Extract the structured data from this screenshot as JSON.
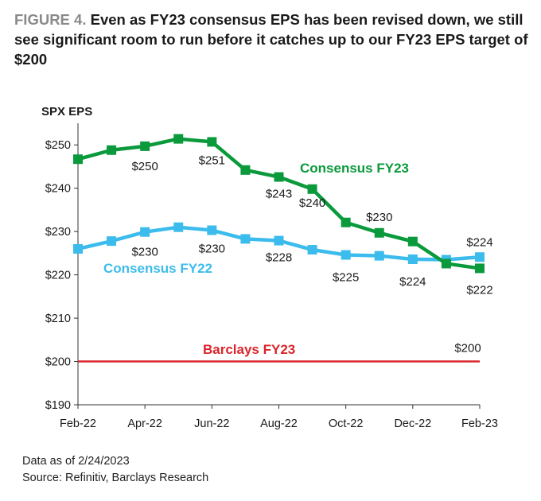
{
  "figure": {
    "number": "FIGURE 4.",
    "title": "Even as FY23 consensus EPS has been revised down, we still see significant room to run before it catches up to our FY23 EPS target of $200"
  },
  "footnotes": {
    "data_as_of": "Data as of 2/24/2023",
    "source": "Source: Refinitiv, Barclays Research"
  },
  "chart_data": {
    "type": "line",
    "ylabel": "SPX EPS",
    "ylim": [
      190,
      255
    ],
    "yticks": [
      190,
      200,
      210,
      220,
      230,
      240,
      250
    ],
    "ytick_labels": [
      "$190",
      "$200",
      "$210",
      "$220",
      "$230",
      "$240",
      "$250"
    ],
    "x": [
      "2022-02",
      "2022-03",
      "2022-04",
      "2022-05",
      "2022-06",
      "2022-07",
      "2022-08",
      "2022-09",
      "2022-10",
      "2022-11",
      "2022-12",
      "2023-01",
      "2023-02"
    ],
    "xtick_labels": [
      "Feb-22",
      "Apr-22",
      "Jun-22",
      "Aug-22",
      "Oct-22",
      "Dec-22",
      "Feb-23"
    ],
    "series": [
      {
        "name": "Consensus FY23",
        "color": "#0a9a3c",
        "values": [
          246.7,
          248.8,
          249.7,
          251.4,
          250.7,
          244.2,
          242.6,
          239.8,
          232.1,
          229.7,
          227.7,
          222.6,
          221.5
        ],
        "data_labels": [
          {
            "i": 2,
            "text": "$250"
          },
          {
            "i": 4,
            "text": "$251"
          },
          {
            "i": 6,
            "text": "$243"
          },
          {
            "i": 7,
            "text": "$240"
          },
          {
            "i": 9,
            "text": "$230"
          },
          {
            "i": 12,
            "text": "$222"
          }
        ]
      },
      {
        "name": "Consensus FY22",
        "color": "#3cbcec",
        "values": [
          226.0,
          227.8,
          229.9,
          231.0,
          230.3,
          228.3,
          227.9,
          225.8,
          224.6,
          224.4,
          223.6,
          223.5,
          224.1
        ],
        "data_labels": [
          {
            "i": 2,
            "text": "$230"
          },
          {
            "i": 4,
            "text": "$230"
          },
          {
            "i": 6,
            "text": "$228"
          },
          {
            "i": 8,
            "text": "$225"
          },
          {
            "i": 10,
            "text": "$224"
          },
          {
            "i": 12,
            "text": "$224"
          }
        ]
      },
      {
        "name": "Barclays FY23",
        "color": "#d9262b",
        "values": [
          200,
          200,
          200,
          200,
          200,
          200,
          200,
          200,
          200,
          200,
          200,
          200,
          200
        ],
        "data_labels": [
          {
            "i": 12,
            "text": "$200"
          }
        ]
      }
    ],
    "legend": "inline labels next to lines",
    "grid": false
  }
}
